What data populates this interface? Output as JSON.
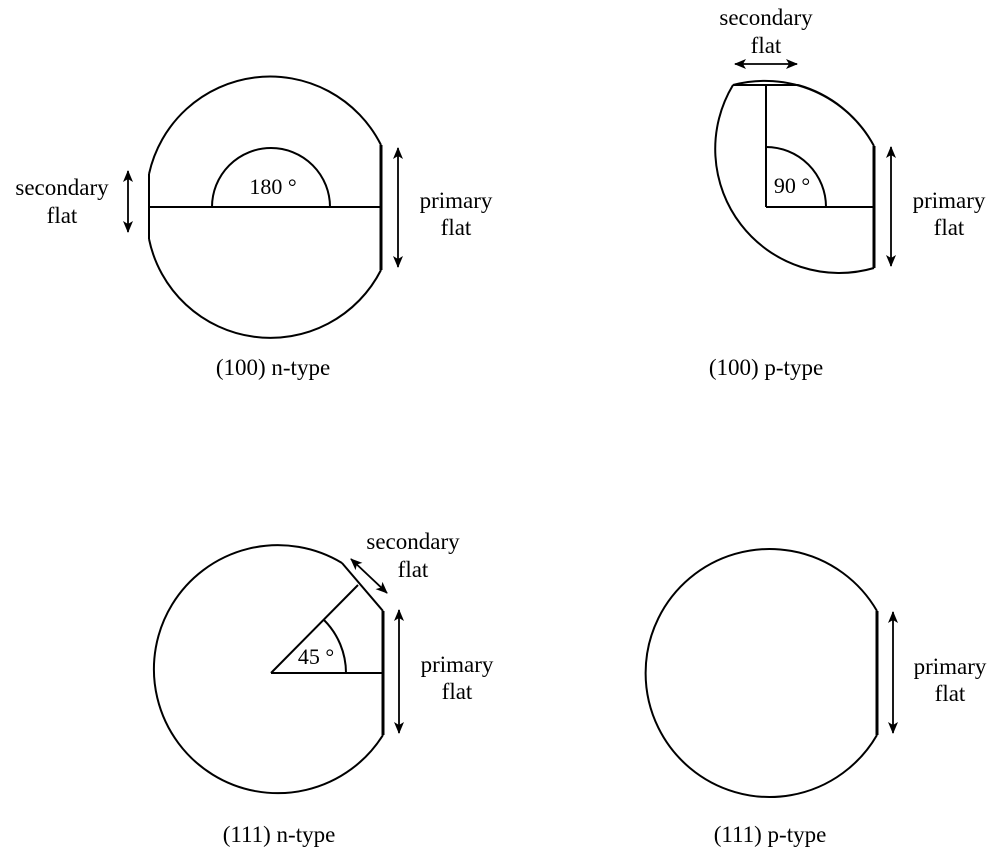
{
  "wafers": [
    {
      "caption": "(100) n-type",
      "angle": "180 °",
      "primary_flat": [
        "primary",
        "flat"
      ],
      "secondary_flat": [
        "secondary",
        "flat"
      ]
    },
    {
      "caption": "(100) p-type",
      "angle": "90 °",
      "primary_flat": [
        "primary",
        "flat"
      ],
      "secondary_flat": [
        "secondary",
        "flat"
      ]
    },
    {
      "caption": "(111) n-type",
      "angle": "45 °",
      "primary_flat": [
        "primary",
        "flat"
      ],
      "secondary_flat": [
        "secondary",
        "flat"
      ]
    },
    {
      "caption": "(111) p-type",
      "primary_flat": [
        "primary",
        "flat"
      ]
    }
  ]
}
